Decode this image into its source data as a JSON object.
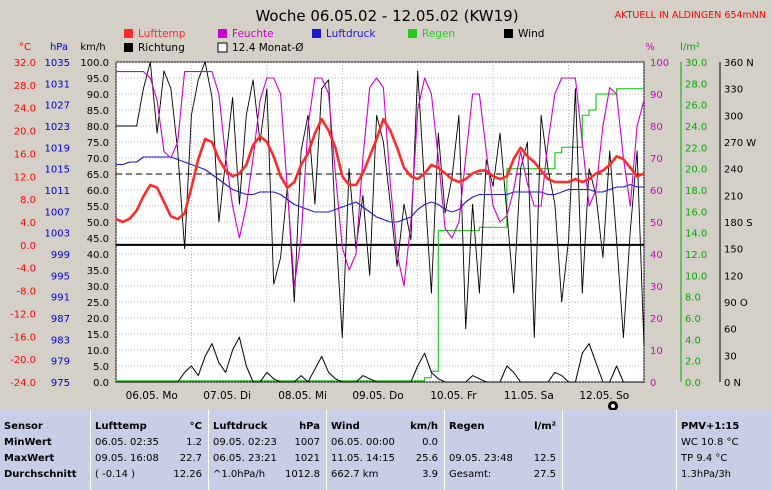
{
  "title": "Woche 06.05.02 - 12.05.02 (KW19)",
  "station": "AKTUELL IN ALDINGEN 654mNN",
  "legend": [
    {
      "name": "Lufttemp",
      "color": "#ff2a2a",
      "text_color": "#ff2a2a",
      "filled": true
    },
    {
      "name": "Feuchte",
      "color": "#cc00cc",
      "text_color": "#cc00cc",
      "filled": true
    },
    {
      "name": "Luftdruck",
      "color": "#1a1acc",
      "text_color": "#1a1acc",
      "filled": true
    },
    {
      "name": "Regen",
      "color": "#22cc22",
      "text_color": "#22cc22",
      "filled": true
    },
    {
      "name": "Wind",
      "color": "#000000",
      "text_color": "#000000",
      "filled": true
    },
    {
      "name": "Richtung",
      "color": "#000000",
      "text_color": "#000000",
      "filled": true
    },
    {
      "name": "12.4 Monat-Ø",
      "color": "#ffffff",
      "text_color": "#000000",
      "filled": false
    }
  ],
  "axes_units": {
    "temp": "°C",
    "pressure": "hPa",
    "wind": "km/h",
    "humidity": "%",
    "rain": "l/m²"
  },
  "chart_data": {
    "type": "line",
    "x_labels": [
      "06.05. Mo",
      "07.05. Di",
      "08.05. Mi",
      "09.05. Do",
      "10.05. Fr",
      "11.05. Sa",
      "12.05. So"
    ],
    "axes": {
      "temp": {
        "unit": "°C",
        "range": [
          -24,
          32
        ],
        "ticks": [
          "32.0",
          "28.0",
          "24.0",
          "20.0",
          "16.0",
          "12.0",
          "8.0",
          "4.0",
          "0.0",
          "-4.0",
          "-8.0",
          "-12.0",
          "-16.0",
          "-20.0",
          "-24.0"
        ],
        "color": "#ff0000"
      },
      "pressure": {
        "unit": "hPa",
        "range": [
          975,
          1039
        ],
        "ticks": [
          "1035",
          "1031",
          "1027",
          "1023",
          "1019",
          "1015",
          "1011",
          "1007",
          "1003",
          "999",
          "995",
          "991",
          "987",
          "983",
          "979",
          "975"
        ],
        "color": "#0000cc"
      },
      "wind": {
        "unit": "km/h",
        "range": [
          0,
          100
        ],
        "ticks": [
          "100.0",
          "95.0",
          "90.0",
          "85.0",
          "80.0",
          "75.0",
          "70.0",
          "65.0",
          "60.0",
          "55.0",
          "50.0",
          "45.0",
          "40.0",
          "35.0",
          "30.0",
          "25.0",
          "20.0",
          "15.0",
          "10.0",
          "5.0",
          "0.0"
        ],
        "color": "#000000"
      },
      "humidity": {
        "unit": "%",
        "range": [
          0,
          100
        ],
        "ticks": [
          "100",
          "90",
          "80",
          "70",
          "60",
          "50",
          "40",
          "30",
          "20",
          "10",
          "0"
        ],
        "color": "#cc00cc"
      },
      "rain": {
        "unit": "l/m²",
        "range": [
          0,
          30
        ],
        "ticks": [
          "30.0",
          "28.0",
          "26.0",
          "24.0",
          "22.0",
          "20.0",
          "18.0",
          "16.0",
          "14.0",
          "12.0",
          "10.0",
          "8.0",
          "6.0",
          "4.0",
          "2.0",
          "0.0"
        ],
        "color": "#00aa00"
      },
      "direction": {
        "unit": "",
        "range": [
          0,
          360
        ],
        "ticks": [
          "360 N",
          "330",
          "300",
          "270 W",
          "240",
          "210",
          "180 S",
          "150",
          "120",
          "90 O",
          "60",
          "30",
          "0 N"
        ],
        "color": "#000000"
      }
    },
    "reference_lines": {
      "monthly_avg_temp": 12.4,
      "freezing_temp": 0.0
    },
    "series": [
      {
        "name": "Lufttemp",
        "axis": "temp",
        "color": "#ff2a2a",
        "values": [
          4.5,
          4.0,
          4.6,
          6.0,
          8.5,
          10.5,
          10.0,
          7.5,
          5.0,
          4.5,
          5.5,
          10.0,
          15.0,
          18.5,
          18.0,
          15.0,
          13.0,
          12.0,
          12.5,
          14.0,
          17.5,
          19.0,
          18.0,
          15.5,
          12.0,
          10.0,
          11.0,
          14.0,
          16.0,
          19.5,
          22.0,
          20.0,
          17.0,
          12.0,
          10.5,
          10.5,
          12.5,
          15.5,
          18.5,
          22.0,
          20.0,
          17.0,
          13.5,
          12.0,
          11.5,
          12.5,
          14.0,
          13.5,
          12.5,
          11.5,
          11.0,
          11.5,
          12.5,
          13.0,
          13.0,
          12.0,
          11.5,
          12.0,
          15.0,
          17.0,
          15.5,
          14.5,
          13.0,
          11.5,
          11.0,
          11.0,
          11.0,
          11.5,
          11.0,
          11.5,
          12.5,
          13.0,
          14.0,
          15.5,
          15.0,
          13.5,
          12.0,
          12.5
        ]
      },
      {
        "name": "Feuchte",
        "axis": "humidity",
        "color": "#cc00cc",
        "values": [
          97,
          97,
          97,
          97,
          97,
          95,
          88,
          72,
          70,
          75,
          97,
          97,
          97,
          97,
          97,
          90,
          70,
          55,
          45,
          55,
          70,
          88,
          95,
          95,
          90,
          60,
          30,
          45,
          80,
          95,
          95,
          90,
          65,
          42,
          35,
          40,
          70,
          92,
          95,
          92,
          62,
          40,
          30,
          50,
          85,
          95,
          90,
          70,
          48,
          45,
          50,
          70,
          90,
          90,
          72,
          55,
          50,
          52,
          60,
          72,
          62,
          55,
          55,
          75,
          90,
          95,
          95,
          95,
          75,
          55,
          60,
          80,
          92,
          90,
          70,
          55,
          80,
          88
        ]
      },
      {
        "name": "Luftdruck",
        "axis": "pressure",
        "color": "#1a1acc",
        "values": [
          1018.5,
          1018.5,
          1019,
          1019,
          1020,
          1020,
          1020,
          1020,
          1020,
          1019.5,
          1019,
          1018.5,
          1018,
          1017.5,
          1016.5,
          1015.5,
          1014.5,
          1013.5,
          1013,
          1012.5,
          1012.5,
          1013,
          1013,
          1013,
          1012.5,
          1011.5,
          1010.5,
          1010,
          1009.5,
          1009,
          1009,
          1009,
          1009.5,
          1010,
          1010.5,
          1011,
          1010,
          1009,
          1008,
          1007.5,
          1007,
          1007,
          1007.5,
          1008,
          1009.5,
          1010.5,
          1011,
          1010.5,
          1009.5,
          1009,
          1009.5,
          1011,
          1012,
          1012.5,
          1012.5,
          1012.5,
          1012.5,
          1012.5,
          1013,
          1013,
          1013,
          1013,
          1013,
          1012.5,
          1012.5,
          1013,
          1013.5,
          1013.5,
          1013.5,
          1013.5,
          1013,
          1013,
          1013.5,
          1014,
          1014,
          1014.5,
          1014,
          1014
        ]
      },
      {
        "name": "Regen",
        "axis": "rain",
        "color": "#22cc22",
        "values": [
          0.1,
          0.1,
          0.1,
          0.1,
          0.1,
          0.1,
          0.1,
          0.1,
          0.1,
          0.1,
          0.1,
          0.1,
          0.1,
          0.1,
          0.1,
          0.1,
          0.1,
          0.1,
          0.1,
          0.1,
          0.1,
          0.1,
          0.1,
          0.1,
          0.1,
          0.1,
          0.1,
          0.1,
          0.1,
          0.1,
          0.1,
          0.1,
          0.1,
          0.1,
          0.1,
          0.1,
          0.1,
          0.1,
          0.1,
          0.1,
          0.1,
          0.1,
          0.1,
          0.1,
          0.1,
          0.4,
          1.0,
          14.2,
          14.2,
          14.2,
          14.2,
          14.2,
          14.2,
          14.5,
          14.5,
          14.5,
          14.5,
          20.0,
          20.0,
          20.0,
          20.0,
          20.0,
          20.0,
          20.0,
          21.5,
          22.0,
          22.0,
          22.0,
          25.0,
          25.5,
          27.0,
          27.0,
          27.0,
          27.5,
          27.5,
          27.5,
          27.5,
          27.5
        ]
      },
      {
        "name": "Wind",
        "axis": "wind",
        "color": "#000000",
        "values": [
          0,
          0,
          0,
          0,
          0,
          0,
          0,
          0,
          0,
          0,
          3,
          5,
          2,
          8,
          12,
          6,
          3,
          10,
          14,
          5,
          0,
          0,
          3,
          1,
          0,
          0,
          0,
          2,
          0,
          4,
          8,
          3,
          1,
          0,
          0,
          0,
          2,
          1,
          0,
          0,
          0,
          0,
          0,
          0,
          5,
          9,
          3,
          1,
          0,
          0,
          0,
          0,
          2,
          1,
          0,
          0,
          0,
          5,
          3,
          0,
          0,
          0,
          0,
          0,
          3,
          2,
          0,
          0,
          9,
          12,
          6,
          0,
          0,
          5,
          0,
          0,
          0,
          0
        ]
      },
      {
        "name": "Richtung",
        "axis": "direction",
        "color": "#000000",
        "values": [
          288,
          288,
          288,
          288,
          330,
          360,
          280,
          350,
          330,
          260,
          150,
          300,
          340,
          360,
          320,
          180,
          250,
          320,
          200,
          300,
          340,
          270,
          330,
          110,
          140,
          220,
          90,
          260,
          300,
          200,
          330,
          340,
          180,
          50,
          240,
          150,
          210,
          120,
          300,
          270,
          200,
          130,
          200,
          160,
          350,
          220,
          100,
          280,
          190,
          230,
          300,
          60,
          200,
          100,
          250,
          220,
          280,
          190,
          100,
          240,
          270,
          50,
          300,
          240,
          200,
          90,
          160,
          330,
          100,
          240,
          210,
          140,
          260,
          160,
          50,
          170,
          260,
          40
        ]
      }
    ],
    "grid": true
  },
  "table": {
    "columns": [
      {
        "header": "Sensor",
        "rows": [
          "MinWert",
          "MaxWert",
          "Durchschnitt"
        ]
      },
      {
        "header": "Lufttemp",
        "unit": "°C",
        "rows": [
          [
            "06.05.  02:35",
            "1.2"
          ],
          [
            "09.05.  16:08",
            "22.7"
          ],
          [
            "( -0.14 )",
            "12.26"
          ]
        ]
      },
      {
        "header": "Luftdruck",
        "unit": "hPa",
        "rows": [
          [
            "09.05.  02:23",
            "1007"
          ],
          [
            "06.05.  23:21",
            "1021"
          ],
          [
            "^1.0hPa/h",
            "1012.8"
          ]
        ]
      },
      {
        "header": "Wind",
        "unit": "km/h",
        "rows": [
          [
            "06.05.  00:00",
            "0.0"
          ],
          [
            "11.05.  14:15",
            "25.6"
          ],
          [
            "662.7 km",
            "3.9"
          ]
        ]
      },
      {
        "header": "Regen",
        "unit": "l/m²",
        "rows": [
          [
            "09.05.  23:48",
            "12.5"
          ],
          [
            "Gesamt:",
            "27.5"
          ]
        ]
      },
      {
        "header": "PMV+1:15",
        "rows": [
          "WC 10.8 °C",
          "TP 9.4 °C",
          "1.3hPa/3h"
        ]
      }
    ]
  }
}
